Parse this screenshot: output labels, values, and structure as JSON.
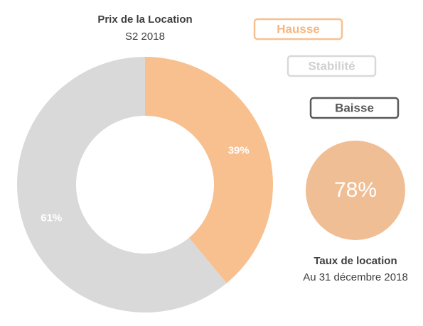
{
  "chart_data": {
    "type": "donut",
    "title": "Prix de la Location",
    "subtitle": "S2 2018",
    "categories": [
      "Hausse",
      "Stabilité",
      "Baisse"
    ],
    "values": [
      39,
      61,
      0
    ],
    "value_labels": [
      "39%",
      "61%",
      null
    ],
    "colors": [
      "#f8c08f",
      "#d9d9d9",
      "#595959"
    ],
    "legend": "top-right",
    "kpi": {
      "value": 78,
      "value_label": "78%",
      "title": "Taux de location",
      "subtitle": "Au 31 décembre 2018",
      "color": "#f0be94"
    }
  }
}
